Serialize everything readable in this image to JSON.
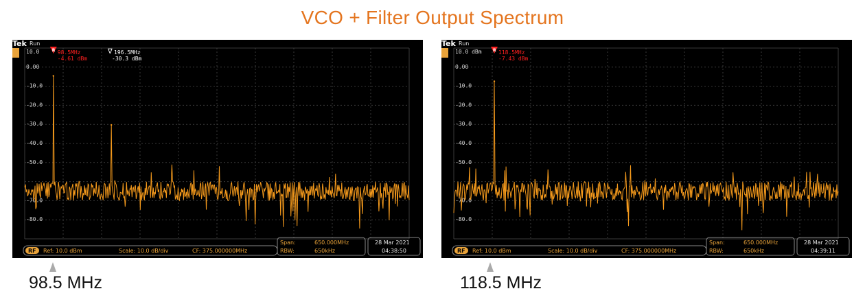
{
  "title": "VCO + Filter Output Spectrum",
  "colors": {
    "accent": "#e4751f",
    "trace": "#f59a1c",
    "grid": "#3a3a3a",
    "marker": "#ff2020",
    "text": "#e9a33a"
  },
  "panels": [
    {
      "brand": "Tek",
      "status": "Run",
      "ref_label": "10.0",
      "y_ticks": [
        "0.00",
        "-10.0",
        "-20.0",
        "-30.0",
        "-40.0",
        "-50.0",
        "-70.0",
        "-80.0"
      ],
      "markers": [
        {
          "type": "R",
          "freq": "98.5MHz",
          "level": "-4.61 dBm"
        },
        {
          "type": "delta",
          "freq": "196.5MHz",
          "level": "-30.3 dBm"
        }
      ],
      "bottom": {
        "rf": "RF",
        "ref": "Ref: 10.0 dBm",
        "scale": "Scale: 10.0 dB/div",
        "cf": "CF:  375.000000MHz",
        "span_label": "Span:",
        "span_value": "650.000MHz",
        "rbw_label": "RBW:",
        "rbw_value": "650kHz",
        "date": "28 Mar  2021",
        "time": "04:38:50"
      },
      "caption": "98.5 MHz"
    },
    {
      "brand": "Tek",
      "status": "Run",
      "ref_label": "10.0 dBm",
      "y_ticks": [
        "0.00",
        "-10.0",
        "-20.0",
        "-30.0",
        "-40.0",
        "-50.0",
        "-70.0",
        "-80.0"
      ],
      "markers": [
        {
          "type": "R",
          "freq": "118.5MHz",
          "level": "-7.43 dBm"
        }
      ],
      "bottom": {
        "rf": "RF",
        "ref": "Ref: 10.0 dBm",
        "scale": "Scale: 10.0 dB/div",
        "cf": "CF:  375.000000MHz",
        "span_label": "Span:",
        "span_value": "650.000MHz",
        "rbw_label": "RBW:",
        "rbw_value": "650kHz",
        "date": "28 Mar  2021",
        "time": "04:39:11"
      },
      "caption": "118.5 MHz"
    }
  ],
  "chart_data": [
    {
      "type": "line",
      "title": "",
      "xlabel": "",
      "ylabel": "",
      "units": {
        "x": "MHz",
        "y": "dBm"
      },
      "xlim": [
        50,
        700
      ],
      "ylim": [
        -90,
        10
      ],
      "grid": true,
      "noise_floor": -65,
      "series": [
        {
          "peaks": [
            {
              "x": 98.5,
              "y": -4.61
            },
            {
              "x": 196.5,
              "y": -30.3
            }
          ]
        }
      ]
    },
    {
      "type": "line",
      "title": "",
      "xlabel": "",
      "ylabel": "",
      "units": {
        "x": "MHz",
        "y": "dBm"
      },
      "xlim": [
        50,
        700
      ],
      "ylim": [
        -90,
        10
      ],
      "grid": true,
      "noise_floor": -65,
      "series": [
        {
          "peaks": [
            {
              "x": 118.5,
              "y": -7.43
            }
          ]
        }
      ]
    }
  ]
}
